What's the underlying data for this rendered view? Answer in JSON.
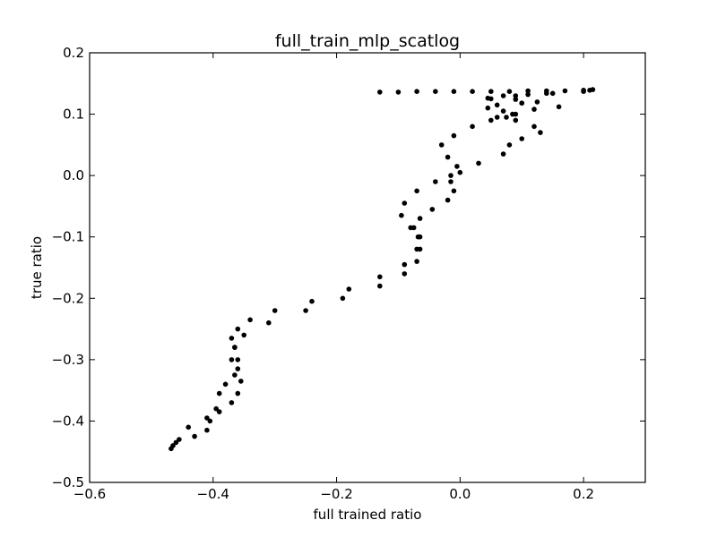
{
  "chart_data": {
    "type": "scatter",
    "title": "full_train_mlp_scatlog",
    "xlabel": "full trained ratio",
    "ylabel": "true ratio",
    "xlim": [
      -0.6,
      0.3
    ],
    "ylim": [
      -0.5,
      0.2
    ],
    "xticks": [
      -0.6,
      -0.4,
      -0.2,
      0.0,
      0.2
    ],
    "xtick_labels": [
      "−0.6",
      "−0.4",
      "−0.2",
      "0.0",
      "0.2"
    ],
    "yticks": [
      -0.5,
      -0.4,
      -0.3,
      -0.2,
      -0.1,
      0.0,
      0.1,
      0.2
    ],
    "ytick_labels": [
      "−0.5",
      "−0.4",
      "−0.3",
      "−0.2",
      "−0.1",
      "0.0",
      "0.1",
      "0.2"
    ],
    "grid": false,
    "marker_color": "#000000",
    "series": [
      {
        "x": [
          -0.468,
          -0.46,
          -0.44,
          -0.41,
          -0.395,
          -0.39,
          -0.38,
          -0.365,
          -0.36,
          -0.365,
          -0.37,
          -0.36,
          -0.34,
          -0.3,
          -0.24,
          -0.18,
          -0.13,
          -0.09,
          -0.07,
          -0.068,
          -0.08,
          -0.095,
          -0.09,
          -0.07,
          -0.04,
          -0.015,
          -0.005,
          -0.02,
          -0.03,
          -0.01,
          0.02,
          0.05,
          0.075,
          0.085,
          0.07,
          0.045,
          0.06,
          0.1,
          0.125,
          0.09,
          0.045,
          0.07,
          0.11,
          0.14,
          0.2
        ],
        "y": [
          -0.445,
          -0.435,
          -0.41,
          -0.395,
          -0.38,
          -0.355,
          -0.34,
          -0.325,
          -0.3,
          -0.28,
          -0.265,
          -0.25,
          -0.235,
          -0.22,
          -0.205,
          -0.185,
          -0.165,
          -0.145,
          -0.12,
          -0.1,
          -0.085,
          -0.065,
          -0.045,
          -0.025,
          -0.01,
          0.0,
          0.015,
          0.03,
          0.05,
          0.065,
          0.08,
          0.09,
          0.095,
          0.1,
          0.105,
          0.11,
          0.115,
          0.118,
          0.12,
          0.124,
          0.126,
          0.13,
          0.132,
          0.134,
          0.137
        ]
      },
      {
        "x": [
          -0.465,
          -0.455,
          -0.43,
          -0.41,
          -0.405,
          -0.39,
          -0.37,
          -0.36,
          -0.355,
          -0.36,
          -0.37,
          -0.365,
          -0.35,
          -0.31,
          -0.25,
          -0.19,
          -0.13,
          -0.09,
          -0.07,
          -0.065,
          -0.065,
          -0.075,
          -0.065,
          -0.045,
          -0.02,
          -0.01,
          -0.015,
          0.0,
          0.03,
          0.07,
          0.08,
          0.1,
          0.13,
          0.12,
          0.09,
          0.06,
          0.09,
          0.12,
          0.16,
          0.1,
          0.05,
          0.09,
          0.15,
          0.21
        ],
        "y": [
          -0.44,
          -0.43,
          -0.425,
          -0.415,
          -0.4,
          -0.385,
          -0.37,
          -0.355,
          -0.335,
          -0.315,
          -0.3,
          -0.28,
          -0.26,
          -0.24,
          -0.22,
          -0.2,
          -0.18,
          -0.16,
          -0.14,
          -0.12,
          -0.1,
          -0.085,
          -0.07,
          -0.055,
          -0.04,
          -0.025,
          -0.01,
          0.005,
          0.02,
          0.035,
          0.05,
          0.06,
          0.07,
          0.08,
          0.09,
          0.095,
          0.1,
          0.108,
          0.112,
          0.118,
          0.125,
          0.13,
          0.134,
          0.139
        ]
      },
      {
        "x": [
          -0.13,
          -0.1,
          -0.07,
          -0.04,
          -0.01,
          0.02,
          0.05,
          0.08,
          0.11,
          0.14,
          0.17,
          0.2,
          0.215
        ],
        "y": [
          0.136,
          0.136,
          0.137,
          0.137,
          0.137,
          0.137,
          0.137,
          0.137,
          0.138,
          0.138,
          0.138,
          0.139,
          0.14
        ]
      }
    ]
  }
}
